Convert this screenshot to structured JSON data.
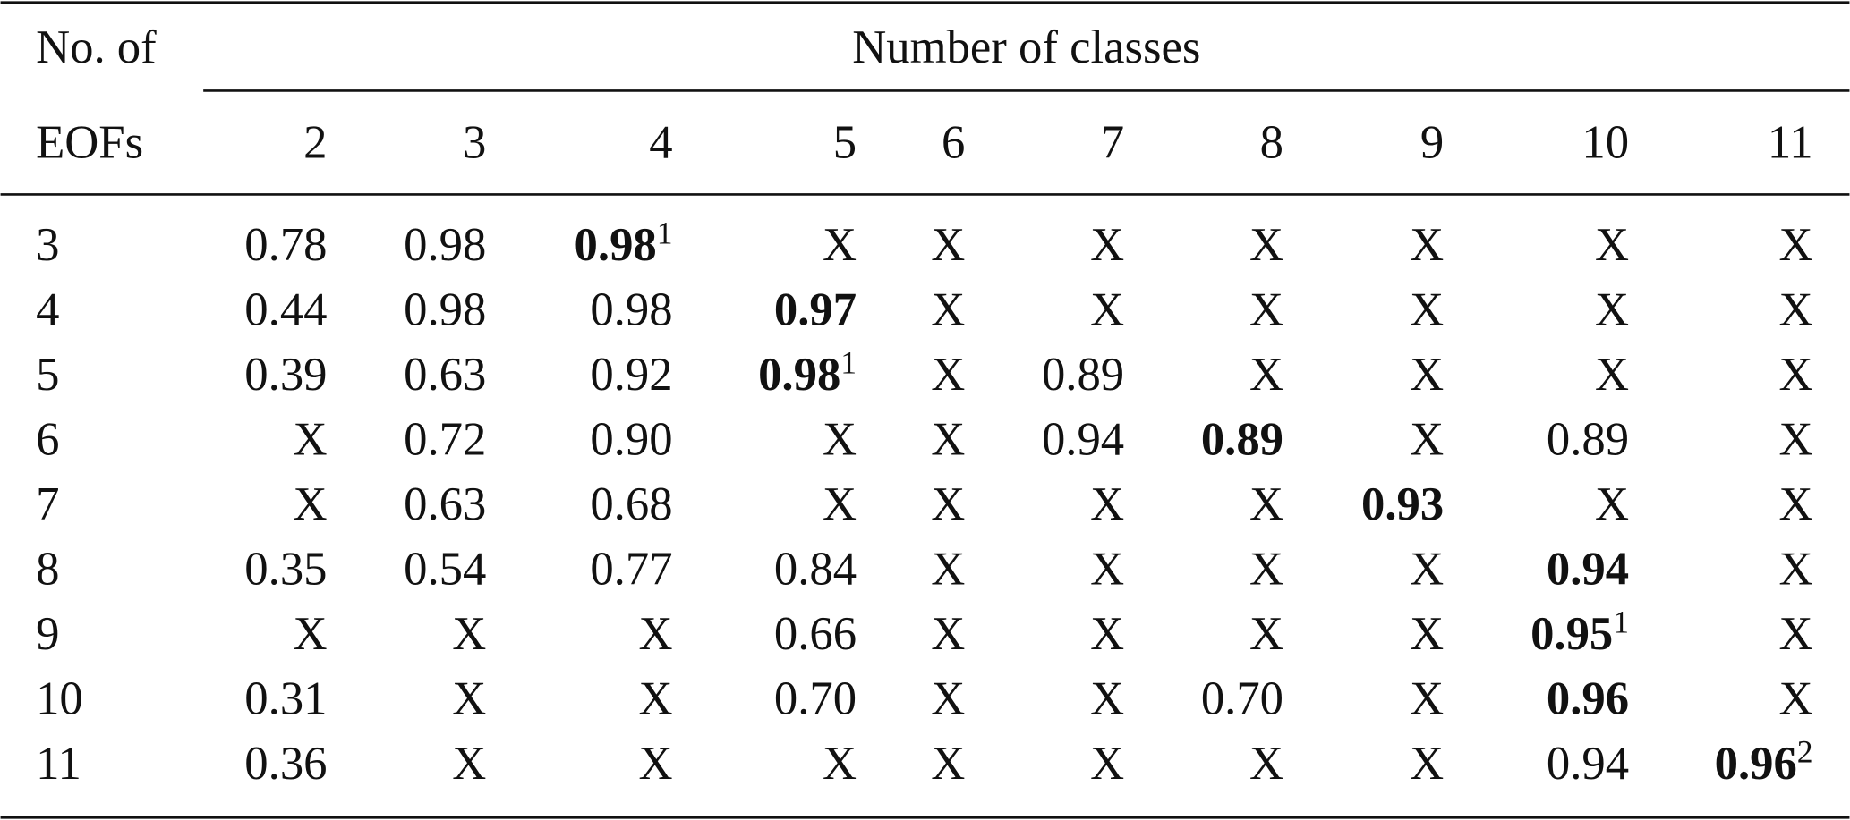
{
  "header": {
    "corner_top": "No. of",
    "corner_bottom": "EOFs",
    "spanner": "Number of classes",
    "columns": [
      "2",
      "3",
      "4",
      "5",
      "6",
      "7",
      "8",
      "9",
      "10",
      "11"
    ]
  },
  "table": {
    "rows": [
      {
        "label": "3",
        "cells": [
          "0.78",
          "0.98",
          {
            "text": "0.98",
            "bold": true,
            "sup": "1"
          },
          "X",
          "X",
          "X",
          "X",
          "X",
          "X",
          "X"
        ]
      },
      {
        "label": "4",
        "cells": [
          "0.44",
          "0.98",
          "0.98",
          {
            "text": "0.97",
            "bold": true
          },
          "X",
          "X",
          "X",
          "X",
          "X",
          "X"
        ]
      },
      {
        "label": "5",
        "cells": [
          "0.39",
          "0.63",
          "0.92",
          {
            "text": "0.98",
            "bold": true,
            "sup": "1"
          },
          "X",
          "0.89",
          "X",
          "X",
          "X",
          "X"
        ]
      },
      {
        "label": "6",
        "cells": [
          "X",
          "0.72",
          "0.90",
          "X",
          "X",
          "0.94",
          {
            "text": "0.89",
            "bold": true
          },
          "X",
          "0.89",
          "X"
        ]
      },
      {
        "label": "7",
        "cells": [
          "X",
          "0.63",
          "0.68",
          "X",
          "X",
          "X",
          "X",
          {
            "text": "0.93",
            "bold": true
          },
          "X",
          "X"
        ]
      },
      {
        "label": "8",
        "cells": [
          "0.35",
          "0.54",
          "0.77",
          "0.84",
          "X",
          "X",
          "X",
          "X",
          {
            "text": "0.94",
            "bold": true
          },
          "X"
        ]
      },
      {
        "label": "9",
        "cells": [
          "X",
          "X",
          "X",
          "0.66",
          "X",
          "X",
          "X",
          "X",
          {
            "text": "0.95",
            "bold": true,
            "sup": "1"
          },
          "X"
        ]
      },
      {
        "label": "10",
        "cells": [
          "0.31",
          "X",
          "X",
          "0.70",
          "X",
          "X",
          "0.70",
          "X",
          {
            "text": "0.96",
            "bold": true
          },
          "X"
        ]
      },
      {
        "label": "11",
        "cells": [
          "0.36",
          "X",
          "X",
          "X",
          "X",
          "X",
          "X",
          "X",
          "0.94",
          {
            "text": "0.96",
            "bold": true,
            "sup": "2"
          }
        ]
      }
    ]
  }
}
